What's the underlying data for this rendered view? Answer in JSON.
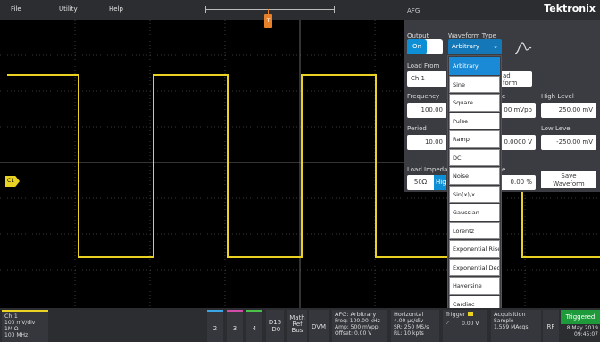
{
  "menu": {
    "file": "File",
    "utility": "Utility",
    "help": "Help"
  },
  "trigger_marker_glyph": "T",
  "channel_marker": "C1",
  "afg": {
    "title": "AFG",
    "brand": "Tektronix",
    "output_label": "Output",
    "output_value": "On",
    "waveform_type_label": "Waveform Type",
    "waveform_type_value": "Arbitrary",
    "load_from_label": "Load From",
    "load_from_value": "Ch 1",
    "load_waveform_partial_1": "ad",
    "load_waveform_partial_2": "form",
    "frequency_label": "Frequency",
    "frequency_value": "100.00",
    "amplitude_label_partial": "e",
    "amplitude_value_partial": "00 mVpp",
    "high_level_label": "High Level",
    "high_level_value": "250.00 mV",
    "period_label": "Period",
    "period_value": "10.00",
    "offset_value_partial": "0.0000 V",
    "low_level_label": "Low Level",
    "low_level_value": "-250.00 mV",
    "load_impedance_label": "Load Impedan",
    "impedance_50": "50Ω",
    "impedance_high": "Hig",
    "symmetry_label_partial": "e",
    "symmetry_value": "0.00 %",
    "save_waveform_line1": "Save",
    "save_waveform_line2": "Waveform"
  },
  "dropdown_options": [
    "Arbitrary",
    "Sine",
    "Square",
    "Pulse",
    "Ramp",
    "DC",
    "Noise",
    "Sin(x)/x",
    "Gaussian",
    "Lorentz",
    "Exponential Rise",
    "Exponential Deca",
    "Haversine",
    "Cardiac"
  ],
  "bottom": {
    "ch1_title": "Ch 1",
    "ch1_scale": "100 mV/div",
    "ch1_imp": "1M Ω",
    "ch1_bw": "100 MHz",
    "btn2": "2",
    "btn3": "3",
    "btn4": "4",
    "d15_1": "D15",
    "d15_2": "-D0",
    "math": "Math",
    "ref": "Ref",
    "bus": "Bus",
    "dvm": "DVM",
    "afg_title": "AFG: Arbitrary",
    "afg_freq": "Freq: 100.00 kHz",
    "afg_amp": "Amp: 500 mVpp",
    "afg_offset": "Offset: 0.00 V",
    "horiz_title": "Horizontal",
    "horiz_scale": "4.00 µs/div",
    "horiz_sr": "SR: 250 MS/s",
    "horiz_rl": "RL: 10 kpts",
    "trigger_title": "Trigger",
    "trigger_level": "0.00 V",
    "acq_title": "Acquisition",
    "acq_mode": "Sample",
    "acq_count": "1,559 MAcqs",
    "rf": "RF",
    "triggered": "Triggered",
    "date": "8 May 2019",
    "time": "09:45:07"
  },
  "colors": {
    "trace": "#e9d221",
    "accent": "#0d8fd6",
    "trigger": "#e8802a",
    "triggered": "#1e9a3a"
  }
}
